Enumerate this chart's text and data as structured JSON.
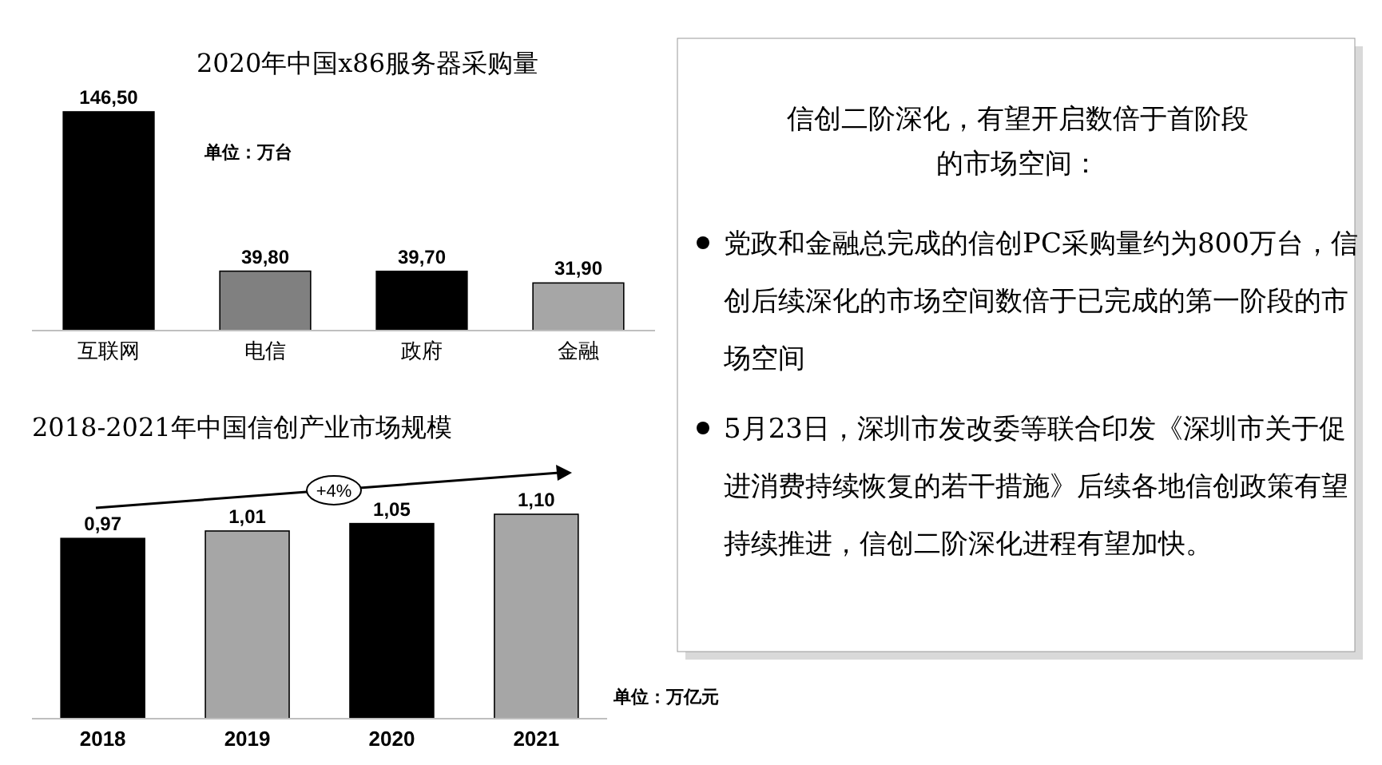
{
  "chart_data": [
    {
      "type": "bar",
      "title": "2020年中国x86服务器采购量",
      "categories": [
        "互联网",
        "电信",
        "政府",
        "金融"
      ],
      "values": [
        146.5,
        39.8,
        39.7,
        31.9
      ],
      "colors": [
        "#000000",
        "#808080",
        "#000000",
        "#a6a6a6"
      ],
      "value_labels": [
        "146,50",
        "39,80",
        "39,70",
        "31,90"
      ],
      "annotations": [
        "单位：万台"
      ]
    },
    {
      "type": "bar",
      "title": "2018-2021年中国信创产业市场规模",
      "categories": [
        "2018",
        "2019",
        "2020",
        "2021"
      ],
      "values": [
        0.97,
        1.01,
        1.05,
        1.1
      ],
      "colors": [
        "#000000",
        "#a6a6a6",
        "#000000",
        "#a6a6a6"
      ],
      "value_labels": [
        "0,97",
        "1,01",
        "1,05",
        "1,10"
      ],
      "annotations": [
        "+4%",
        "单位：万亿元"
      ]
    },
    {
      "type": "other",
      "title": "信创二阶深化，有望开启数倍于首阶段的市场空间：",
      "annotations": [
        "党政和金融总完成的信创PC采购量约为800万台，信创后续深化的市场空间数倍于已完成的第一阶段的市场空间",
        "5月23日，深圳市发改委等联合印发《深圳市关于促进消费持续恢复的若干措施》后续各地信创政策有望持续推进，信创二阶深化进程有望加快。"
      ]
    }
  ]
}
